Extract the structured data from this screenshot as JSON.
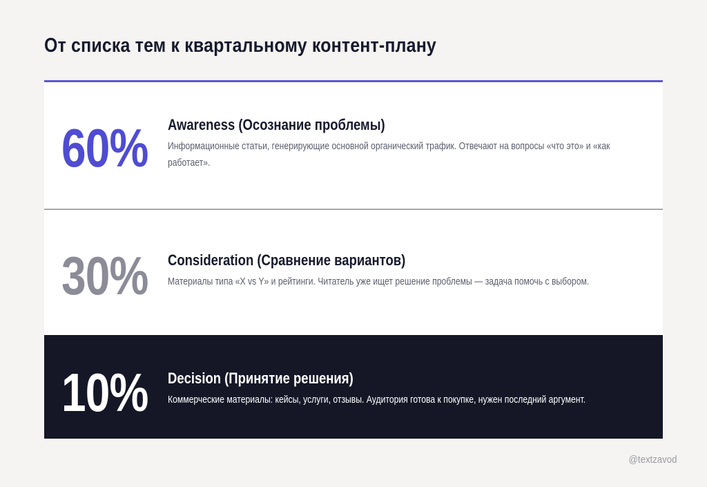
{
  "title": "От списка тем к квартальному контент-плану",
  "stages": [
    {
      "percent": "60%",
      "heading": "Awareness (Осознание проблемы)",
      "description": "Информационные статьи, генерирующие основной органический трафик. Отвечают на вопросы «что это» и «как работает»."
    },
    {
      "percent": "30%",
      "heading": "Consideration (Сравнение вариантов)",
      "description": "Материалы типа «X vs Y» и рейтинги. Читатель уже ищет решение проблемы — задача помочь с выбором."
    },
    {
      "percent": "10%",
      "heading": "Decision (Принятие решения)",
      "description": "Коммерческие материалы: кейсы, услуги, отзывы. Аудитория готова к покупке, нужен последний аргумент."
    }
  ],
  "handle": "@textzavod",
  "colors": {
    "background": "#f5f4f2",
    "accent": "#4f4cd3",
    "muted": "#8c8b98",
    "dark": "#151727"
  }
}
